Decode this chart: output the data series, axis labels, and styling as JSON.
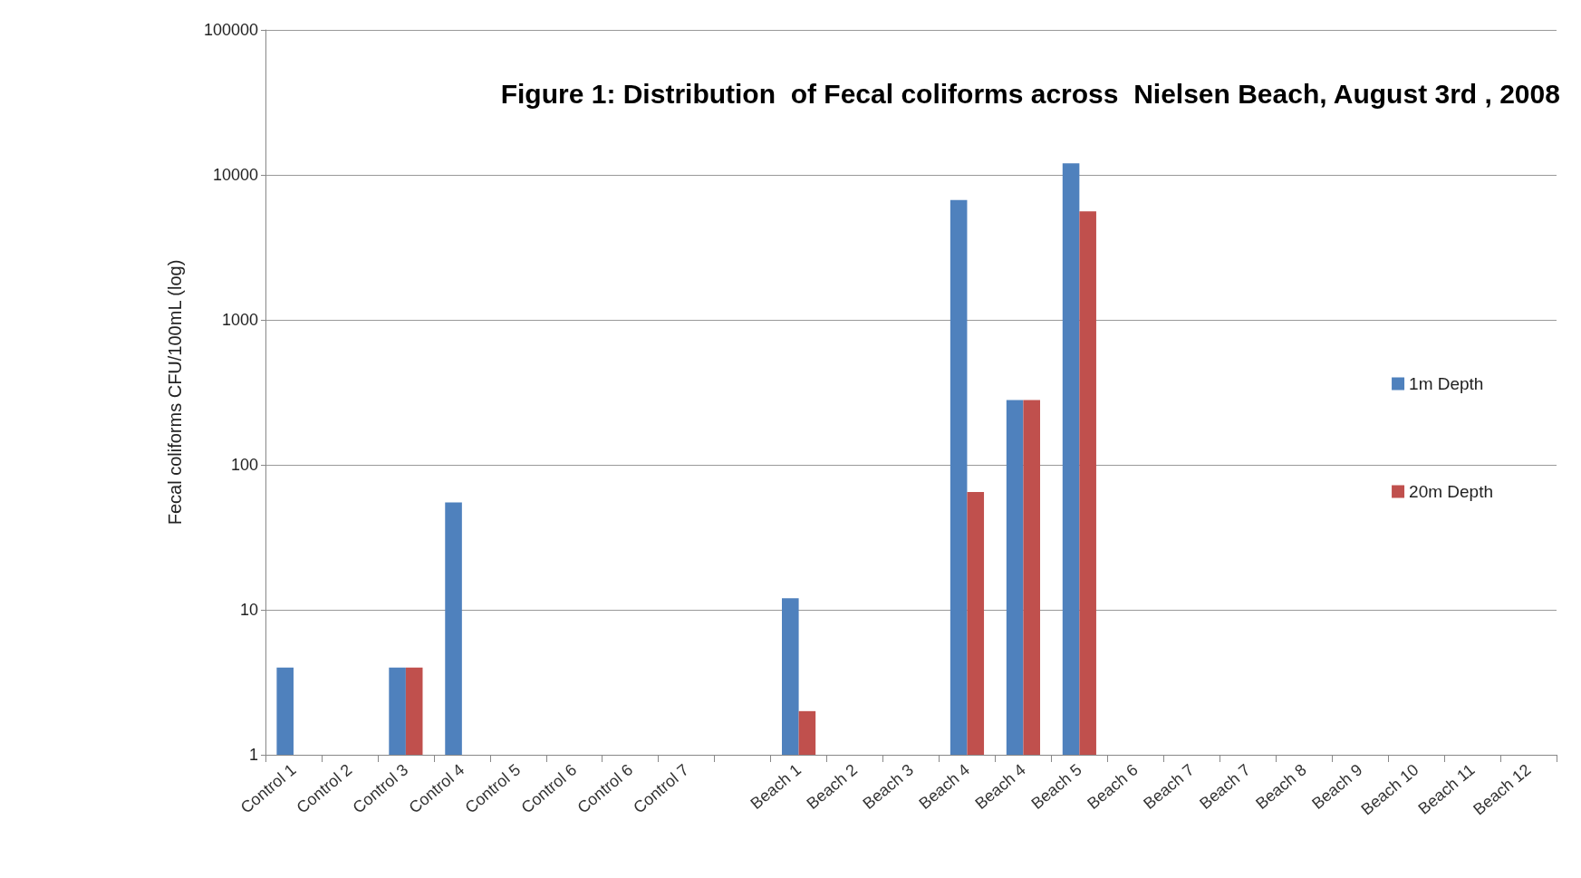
{
  "chart_data": {
    "type": "bar",
    "title": "Figure 1: Distribution  of Fecal coliforms across  Nielsen Beach, August 3rd , 2008",
    "ylabel": "Fecal coliforms CFU/100mL (log)",
    "categories": [
      "Control 1",
      "Control 2",
      "Control 3",
      "Control 4",
      "Control 5",
      "Control 6",
      "Control 6",
      "Control 7",
      null,
      "Beach 1",
      "Beach 2",
      "Beach 3",
      "Beach 4",
      "Beach 4",
      "Beach 5",
      "Beach 6",
      "Beach 7",
      "Beach 7",
      "Beach 8",
      "Beach 9",
      "Beach 10",
      "Beach 11",
      "Beach 12"
    ],
    "series": [
      {
        "name": "1m Depth",
        "color": "#4f81bd",
        "values": [
          4,
          null,
          4,
          55,
          null,
          null,
          null,
          null,
          null,
          12,
          null,
          null,
          6700,
          280,
          12000,
          null,
          null,
          null,
          null,
          null,
          null,
          null,
          null
        ]
      },
      {
        "name": "20m Depth",
        "color": "#c0504d",
        "values": [
          null,
          null,
          4,
          null,
          null,
          null,
          null,
          null,
          null,
          2,
          null,
          null,
          65,
          280,
          5600,
          null,
          null,
          null,
          null,
          null,
          null,
          null,
          null
        ]
      }
    ],
    "log": "y",
    "ylim": [
      1,
      100000
    ],
    "yticks": [
      1,
      10,
      100,
      1000,
      10000,
      100000
    ],
    "grid": "y",
    "legend": "right"
  }
}
